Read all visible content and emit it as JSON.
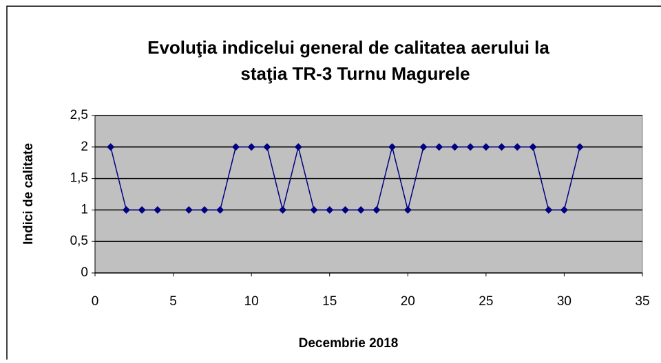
{
  "chart_data": {
    "type": "line",
    "title": [
      "Evoluţia indicelui general de calitatea aerului la",
      "staţia TR-3 Turnu Magurele"
    ],
    "xlabel": "Decembrie 2018",
    "ylabel": "Indici de calitate",
    "x": [
      1,
      2,
      3,
      4,
      5,
      6,
      7,
      8,
      9,
      10,
      11,
      12,
      13,
      14,
      15,
      16,
      17,
      18,
      19,
      20,
      21,
      22,
      23,
      24,
      25,
      26,
      27,
      28,
      29,
      30,
      31
    ],
    "series": [
      {
        "color": "#000080",
        "values": [
          2,
          1,
          1,
          1,
          null,
          1,
          1,
          1,
          2,
          2,
          2,
          1,
          2,
          1,
          1,
          1,
          1,
          1,
          2,
          1,
          2,
          2,
          2,
          2,
          2,
          2,
          2,
          2,
          1,
          1,
          2
        ]
      }
    ],
    "xlim": [
      0,
      35
    ],
    "xticks": [
      0,
      5,
      10,
      15,
      20,
      25,
      30,
      35
    ],
    "ylim": [
      0,
      2.5
    ],
    "yticks": [
      0,
      {
        "value": 0.5,
        "label": "0,5"
      },
      1,
      {
        "value": 1.5,
        "label": "1,5"
      },
      2,
      {
        "value": 2.5,
        "label": "2,5"
      }
    ],
    "grid": true,
    "background": "#c0c0c0"
  }
}
